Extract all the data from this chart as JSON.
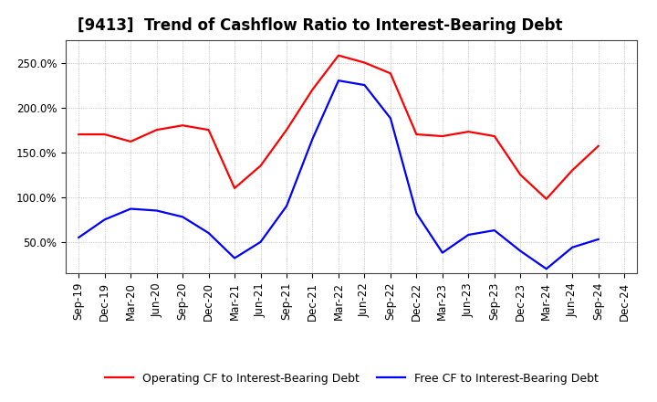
{
  "title": "[9413]  Trend of Cashflow Ratio to Interest-Bearing Debt",
  "x_labels": [
    "Sep-19",
    "Dec-19",
    "Mar-20",
    "Jun-20",
    "Sep-20",
    "Dec-20",
    "Mar-21",
    "Jun-21",
    "Sep-21",
    "Dec-21",
    "Mar-22",
    "Jun-22",
    "Sep-22",
    "Dec-22",
    "Mar-23",
    "Jun-23",
    "Sep-23",
    "Dec-23",
    "Mar-24",
    "Jun-24",
    "Sep-24",
    "Dec-24"
  ],
  "operating_cf": [
    1.7,
    1.7,
    1.62,
    1.75,
    1.8,
    1.75,
    1.1,
    1.35,
    1.75,
    2.2,
    2.58,
    2.5,
    2.38,
    1.7,
    1.68,
    1.73,
    1.68,
    1.25,
    0.98,
    1.3,
    1.57,
    null
  ],
  "free_cf": [
    0.55,
    0.75,
    0.87,
    0.85,
    0.78,
    0.6,
    0.32,
    0.5,
    0.9,
    1.65,
    2.3,
    2.25,
    1.88,
    0.82,
    0.38,
    0.58,
    0.63,
    0.4,
    0.2,
    0.44,
    0.53,
    null
  ],
  "operating_color": "#FF0000",
  "free_color": "#0000FF",
  "yticks": [
    0.5,
    1.0,
    1.5,
    2.0,
    2.5
  ],
  "ytick_labels": [
    "50.0%",
    "100.0%",
    "150.0%",
    "200.0%",
    "250.0%"
  ],
  "ymin": 0.15,
  "ymax": 2.75,
  "legend_operating": "Operating CF to Interest-Bearing Debt",
  "legend_free": "Free CF to Interest-Bearing Debt",
  "background_color": "#FFFFFF",
  "plot_bg_color": "#FFFFFF",
  "grid_color": "#777777",
  "title_fontsize": 12,
  "label_fontsize": 8.5,
  "legend_fontsize": 9,
  "line_width": 1.6
}
